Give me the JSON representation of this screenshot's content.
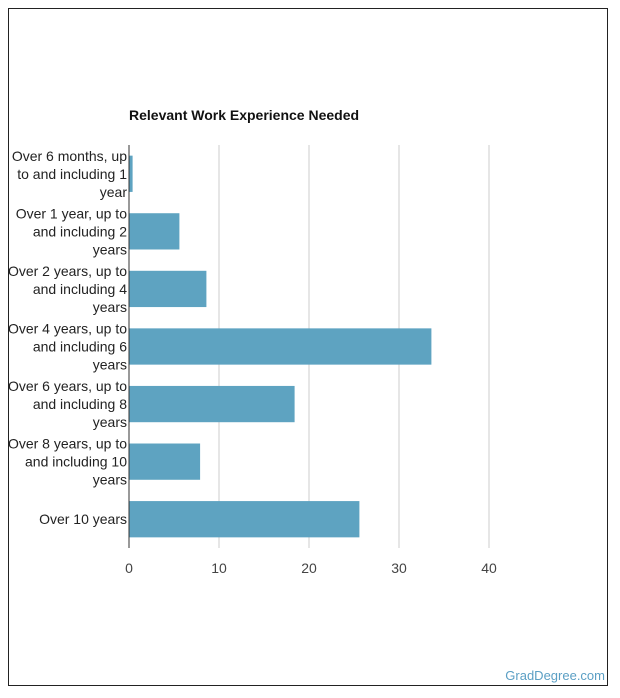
{
  "chart_data": {
    "type": "bar",
    "orientation": "horizontal",
    "title": "Relevant Work Experience Needed",
    "categories": [
      [
        "Over 6 months, up",
        "to and including 1",
        "year"
      ],
      [
        "Over 1 year, up to",
        "and including 2",
        "years"
      ],
      [
        "Over 2 years, up to",
        "and including 4",
        "years"
      ],
      [
        "Over 4 years, up to",
        "and including 6",
        "years"
      ],
      [
        "Over 6 years, up to",
        "and including 8",
        "years"
      ],
      [
        "Over 8 years, up to",
        "and including 10",
        "years"
      ],
      [
        "Over 10 years"
      ]
    ],
    "values": [
      0.4,
      5.6,
      8.6,
      33.6,
      18.4,
      7.9,
      25.6
    ],
    "xlim": [
      0,
      50
    ],
    "xticks": [
      0,
      10,
      20,
      30,
      40
    ],
    "bar_color": "#5ea3c1",
    "grid": true
  },
  "credit": "GradDegree.com"
}
